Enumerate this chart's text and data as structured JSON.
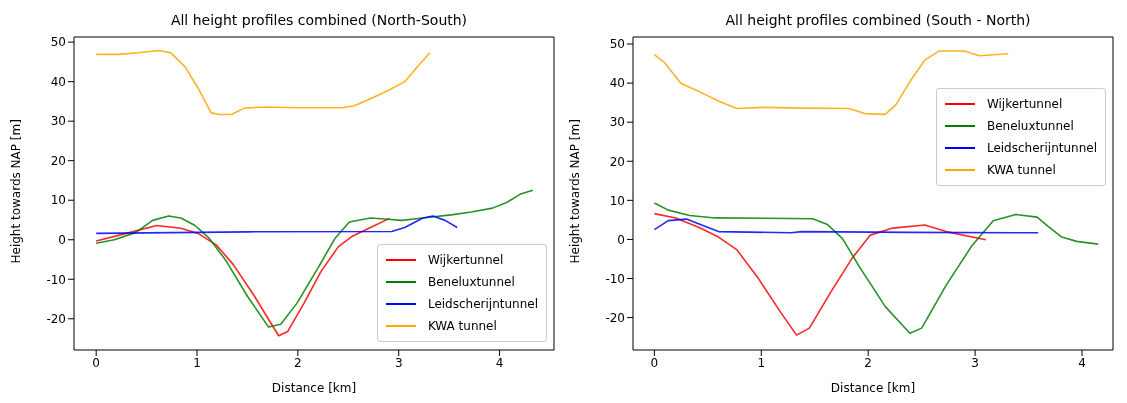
{
  "chart_data": [
    {
      "type": "line",
      "title": "All height profiles combined (North-South)",
      "xlabel": "Distance [km]",
      "ylabel": "Height towards NAP [m]",
      "xlim": [
        -0.22,
        4.54
      ],
      "ylim": [
        -27.9,
        51.3
      ],
      "xticks": [
        0,
        1,
        2,
        3,
        4
      ],
      "yticks": [
        -20,
        -10,
        0,
        10,
        20,
        30,
        40,
        50
      ],
      "legend": "bottom right",
      "series": [
        {
          "name": "Wijkertunnel",
          "color": "#ff0000",
          "x": [
            0,
            0.25,
            0.6,
            0.84,
            1.01,
            1.19,
            1.36,
            1.57,
            1.73,
            1.81,
            1.9,
            2.06,
            2.23,
            2.4,
            2.54,
            2.72,
            2.91
          ],
          "values": [
            -0.3,
            1.3,
            3.6,
            2.9,
            1.6,
            -1.3,
            -6.3,
            -14.3,
            -21,
            -24.3,
            -23.2,
            -16.1,
            -8,
            -1.8,
            0.9,
            3.1,
            5.4
          ]
        },
        {
          "name": "Beneluxtunnel",
          "color": "#008000",
          "x": [
            0,
            0.18,
            0.39,
            0.56,
            0.72,
            0.84,
            0.98,
            1.12,
            1.29,
            1.5,
            1.71,
            1.83,
            1.99,
            2.2,
            2.37,
            2.51,
            2.72,
            2.89,
            3.03,
            3.24,
            3.52,
            3.72,
            3.93,
            4.07,
            4.21,
            4.33
          ],
          "values": [
            -0.9,
            0,
            1.8,
            4.9,
            6,
            5.5,
            3.6,
            0.4,
            -5.4,
            -14.3,
            -22.1,
            -21.4,
            -16.1,
            -7.1,
            0.4,
            4.5,
            5.5,
            5.2,
            4.9,
            5.5,
            6.3,
            7,
            8,
            9.4,
            11.6,
            12.5
          ]
        },
        {
          "name": "Leidscherijntunnel",
          "color": "#0000ff",
          "x": [
            0,
            1.5,
            2.93,
            3.06,
            3.24,
            3.34,
            3.46,
            3.58
          ],
          "values": [
            1.6,
            2,
            2.1,
            3.1,
            5.5,
            6,
            4.9,
            3.1
          ]
        },
        {
          "name": "KWA tunnel",
          "color": "#ffa500",
          "x": [
            0,
            0.22,
            0.42,
            0.62,
            0.74,
            0.88,
            1.01,
            1.14,
            1.22,
            1.34,
            1.47,
            1.67,
            2.02,
            2.44,
            2.56,
            2.72,
            2.89,
            3.06,
            3.2,
            3.31
          ],
          "values": [
            46.9,
            46.9,
            47.3,
            47.9,
            47.3,
            43.8,
            38.4,
            32.1,
            31.7,
            31.7,
            33.3,
            33.6,
            33.4,
            33.4,
            33.9,
            35.7,
            37.7,
            40,
            44.2,
            47.3
          ]
        }
      ]
    },
    {
      "type": "line",
      "title": "All height profiles combined (South - North)",
      "xlabel": "Distance [km]",
      "ylabel": "Height towards NAP [m]",
      "xlim": [
        -0.2,
        4.29
      ],
      "ylim": [
        -28.3,
        51.8
      ],
      "xticks": [
        0,
        1,
        2,
        3,
        4
      ],
      "yticks": [
        -20,
        -10,
        0,
        10,
        20,
        30,
        40,
        50
      ],
      "legend": "right",
      "series": [
        {
          "name": "Wijkertunnel",
          "color": "#ff0000",
          "x": [
            0,
            0.2,
            0.43,
            0.6,
            0.77,
            0.97,
            1.18,
            1.33,
            1.45,
            1.65,
            1.85,
            2.02,
            2.23,
            2.53,
            2.73,
            3.1
          ],
          "values": [
            6.6,
            5.5,
            2.9,
            0.6,
            -2.6,
            -9.9,
            -18.6,
            -24.5,
            -22.7,
            -13.5,
            -4.8,
            1.1,
            2.9,
            3.7,
            2,
            -0.1
          ]
        },
        {
          "name": "Beneluxtunnel",
          "color": "#008000",
          "x": [
            0,
            0.13,
            0.33,
            0.57,
            1.04,
            1.48,
            1.62,
            1.76,
            1.92,
            2.16,
            2.39,
            2.5,
            2.73,
            2.97,
            3.17,
            3.38,
            3.58,
            3.68,
            3.81,
            3.95,
            4.15
          ],
          "values": [
            9.3,
            7.5,
            6.1,
            5.5,
            5.4,
            5.3,
            3.8,
            0.2,
            -7.1,
            -17.2,
            -24,
            -22.7,
            -11.7,
            -1.6,
            4.8,
            6.4,
            5.7,
            3.4,
            0.6,
            -0.5,
            -1.2
          ]
        },
        {
          "name": "Leidscherijntunnel",
          "color": "#0000ff",
          "x": [
            0,
            0.13,
            0.3,
            0.43,
            0.6,
            1.28,
            1.38,
            2.39,
            3.59
          ],
          "values": [
            2.5,
            4.8,
            5.2,
            3.8,
            2,
            1.7,
            2,
            1.8,
            1.7
          ]
        },
        {
          "name": "KWA tunnel",
          "color": "#ffa500",
          "x": [
            0,
            0.09,
            0.25,
            0.43,
            0.6,
            0.77,
            1.04,
            1.38,
            1.82,
            1.97,
            2.16,
            2.26,
            2.39,
            2.53,
            2.66,
            2.9,
            3.04,
            3.31
          ],
          "values": [
            47.3,
            45.4,
            39.9,
            37.7,
            35.4,
            33.5,
            33.8,
            33.6,
            33.5,
            32.2,
            32,
            34.5,
            40.4,
            45.9,
            48.2,
            48.2,
            47,
            47.5
          ]
        }
      ]
    }
  ]
}
